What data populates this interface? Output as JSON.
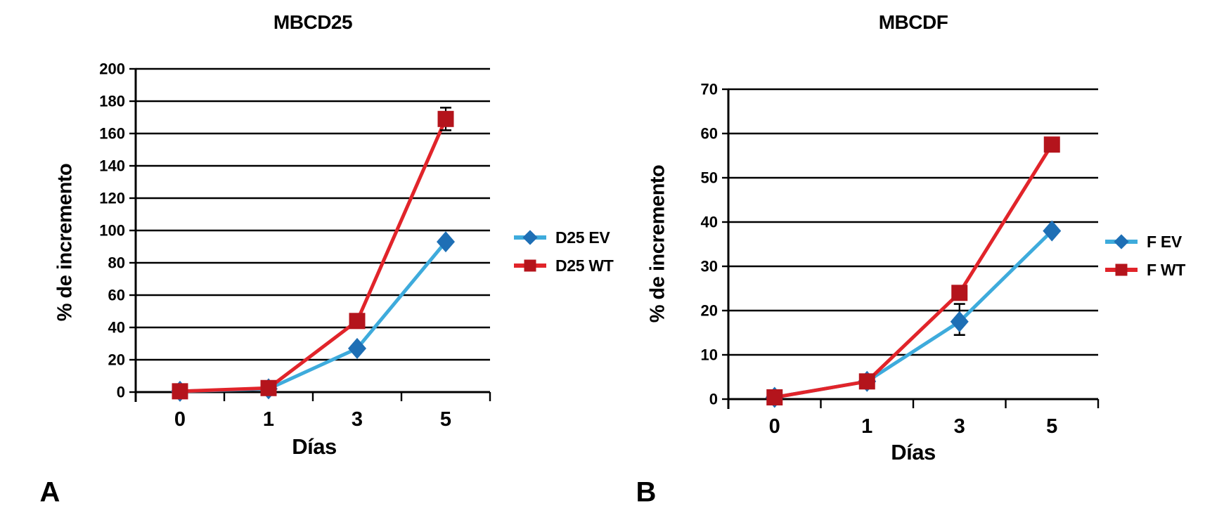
{
  "page": {
    "background": "#ffffff"
  },
  "chart_data": [
    {
      "type": "line",
      "panel_label": "A",
      "title": "MBCD25",
      "categories": [
        "0",
        "1",
        "3",
        "5"
      ],
      "xlabel": "Días",
      "ylabel": "% de incremento",
      "ylim": [
        0,
        200
      ],
      "ytick_step": 20,
      "grid": true,
      "legend_position": "right",
      "series": [
        {
          "name": "D25 EV",
          "marker": "diamond",
          "line_color": "#3EABDC",
          "marker_color": "#1E6FB5",
          "values": [
            0.5,
            2,
            27,
            93
          ],
          "error_bars": []
        },
        {
          "name": "D25 WT",
          "marker": "square",
          "line_color": "#E1242A",
          "marker_color": "#B4141C",
          "values": [
            0.5,
            2.5,
            44,
            169
          ],
          "error_bars": [
            {
              "index": 3,
              "low": 162,
              "high": 176
            }
          ]
        }
      ]
    },
    {
      "type": "line",
      "panel_label": "B",
      "title": "MBCDF",
      "categories": [
        "0",
        "1",
        "3",
        "5"
      ],
      "xlabel": "Días",
      "ylabel": "% de incremento",
      "ylim": [
        0,
        70
      ],
      "ytick_step": 10,
      "grid": true,
      "legend_position": "right",
      "series": [
        {
          "name": "F EV",
          "marker": "diamond",
          "line_color": "#3EABDC",
          "marker_color": "#1E6FB5",
          "values": [
            0.4,
            4,
            17.5,
            38
          ],
          "error_bars": [
            {
              "index": 2,
              "low": 14.5,
              "high": 21.5
            }
          ]
        },
        {
          "name": "F WT",
          "marker": "square",
          "line_color": "#E1242A",
          "marker_color": "#B4141C",
          "values": [
            0.4,
            4,
            24,
            57.5
          ],
          "error_bars": []
        }
      ]
    }
  ]
}
